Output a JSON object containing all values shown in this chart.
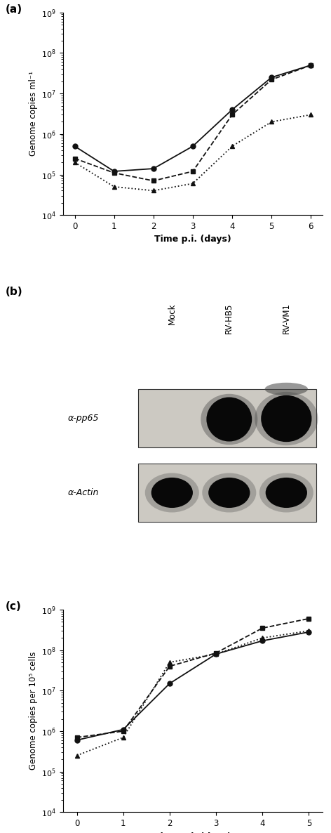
{
  "panel_a": {
    "title": "(a)",
    "ylabel": "Genome copies ml⁻¹",
    "xlabel": "Time p.i. (days)",
    "xlim": [
      -0.3,
      6.3
    ],
    "ylim_log": [
      4,
      9
    ],
    "series": [
      {
        "name": "solid_circle",
        "x": [
          0,
          1,
          2,
          3,
          4,
          5,
          6
        ],
        "y": [
          500000.0,
          120000.0,
          140000.0,
          500000.0,
          4000000.0,
          25000000.0,
          50000000.0
        ],
        "linestyle": "-",
        "marker": "o",
        "color": "#111111",
        "markersize": 5,
        "linewidth": 1.3
      },
      {
        "name": "dashed_square",
        "x": [
          0,
          1,
          2,
          3,
          4,
          5,
          6
        ],
        "y": [
          250000.0,
          110000.0,
          70000.0,
          120000.0,
          3000000.0,
          22000000.0,
          50000000.0
        ],
        "linestyle": "--",
        "marker": "s",
        "color": "#111111",
        "markersize": 5,
        "linewidth": 1.3
      },
      {
        "name": "dotted_triangle",
        "x": [
          0,
          1,
          2,
          3,
          4,
          5,
          6
        ],
        "y": [
          200000.0,
          50000.0,
          40000.0,
          60000.0,
          500000.0,
          2000000.0,
          3000000.0
        ],
        "linestyle": ":",
        "marker": "^",
        "color": "#111111",
        "markersize": 5,
        "linewidth": 1.3
      }
    ]
  },
  "panel_b": {
    "title": "(b)",
    "lane_labels": [
      "Mock",
      "RV-HB5",
      "RV-VM1"
    ],
    "label1": "α-pp65",
    "label2": "α-Actin",
    "box_facecolor": "#ccc9c2",
    "box_edgecolor": "#333333",
    "band_dark": "#080808",
    "band_mid": "#444444",
    "band_light": "#888888"
  },
  "panel_c": {
    "title": "(c)",
    "ylabel": "Genome copies per 10⁵ cells",
    "xlabel": "Time p.i. (days)",
    "xlim": [
      -0.3,
      5.3
    ],
    "ylim_log": [
      4,
      9
    ],
    "series": [
      {
        "name": "solid_circle",
        "x": [
          0,
          1,
          2,
          3,
          4,
          5
        ],
        "y": [
          600000.0,
          1100000.0,
          15000000.0,
          80000000.0,
          170000000.0,
          280000000.0
        ],
        "linestyle": "-",
        "marker": "o",
        "color": "#111111",
        "markersize": 5,
        "linewidth": 1.3
      },
      {
        "name": "dashed_square",
        "x": [
          0,
          1,
          2,
          3,
          4,
          5
        ],
        "y": [
          700000.0,
          1000000.0,
          40000000.0,
          85000000.0,
          350000000.0,
          600000000.0
        ],
        "linestyle": "--",
        "marker": "s",
        "color": "#111111",
        "markersize": 5,
        "linewidth": 1.3
      },
      {
        "name": "dotted_triangle",
        "x": [
          0,
          1,
          2,
          3,
          4,
          5
        ],
        "y": [
          250000.0,
          700000.0,
          50000000.0,
          80000000.0,
          200000000.0,
          300000000.0
        ],
        "linestyle": ":",
        "marker": "^",
        "color": "#111111",
        "markersize": 5,
        "linewidth": 1.3
      }
    ]
  }
}
